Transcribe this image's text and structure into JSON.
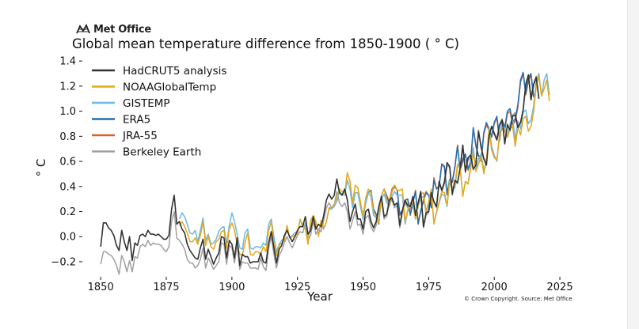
{
  "branding": {
    "logo_text": "Met Office",
    "logo_icon": "met-office-logo-icon"
  },
  "credit": "© Crown Copyright. Source: Met Office",
  "chart_data": {
    "type": "line",
    "title": "Global mean temperature difference from 1850-1900 ( ° C)",
    "xlabel": "Year",
    "ylabel": "° C",
    "xlim": [
      1843,
      2028
    ],
    "ylim": [
      -0.32,
      1.42
    ],
    "xticks": [
      1850,
      1875,
      1900,
      1925,
      1950,
      1975,
      2000,
      2025
    ],
    "yticks": [
      -0.2,
      0.0,
      0.2,
      0.4,
      0.6,
      0.8,
      1.0,
      1.2,
      1.4
    ],
    "ytick_labels": [
      "−0.2",
      "0.0",
      "0.2",
      "0.4",
      "0.6",
      "0.8",
      "1.0",
      "1.2",
      "1.4"
    ],
    "grid": false,
    "legend_position": "top-left",
    "series": [
      {
        "name": "HadCRUT5 analysis",
        "color": "#333333",
        "start": 1850,
        "values": [
          -0.08,
          0.11,
          0.11,
          0.07,
          0.05,
          0.01,
          -0.07,
          -0.11,
          0.05,
          -0.04,
          -0.11,
          0.0,
          -0.19,
          -0.05,
          -0.07,
          0.01,
          0.02,
          0.0,
          0.05,
          0.02,
          0.02,
          0.01,
          0.02,
          0.0,
          -0.02,
          -0.02,
          0.01,
          0.22,
          0.33,
          0.1,
          0.12,
          0.06,
          0.03,
          -0.06,
          -0.11,
          -0.14,
          -0.17,
          -0.18,
          -0.09,
          -0.02,
          -0.18,
          -0.1,
          -0.16,
          -0.22,
          -0.17,
          -0.13,
          0.0,
          -0.01,
          -0.17,
          -0.03,
          -0.06,
          -0.17,
          -0.01,
          -0.23,
          -0.14,
          -0.16,
          -0.16,
          -0.21,
          -0.2,
          -0.2,
          -0.2,
          -0.13,
          -0.2,
          -0.21,
          -0.05,
          0.04,
          -0.09,
          -0.21,
          -0.1,
          -0.07,
          0.01,
          0.05,
          0.0,
          -0.04,
          0.0,
          0.05,
          0.08,
          0.08,
          0.16,
          0.02,
          0.05,
          0.16,
          0.06,
          0.1,
          0.08,
          0.17,
          0.29,
          0.34,
          0.3,
          0.33,
          0.46,
          0.35,
          0.33,
          0.38,
          0.29,
          0.12,
          0.2,
          0.26,
          0.14,
          0.14,
          0.06,
          0.2,
          0.22,
          0.12,
          0.07,
          0.12,
          0.24,
          0.32,
          0.16,
          0.18,
          0.29,
          0.31,
          0.25,
          0.27,
          0.09,
          0.21,
          0.29,
          0.25,
          0.24,
          0.32,
          0.17,
          0.27,
          0.36,
          0.08,
          0.19,
          0.2,
          0.35,
          0.28,
          0.24,
          0.44,
          0.37,
          0.44,
          0.59,
          0.56,
          0.34,
          0.45,
          0.43,
          0.55,
          0.73,
          0.52,
          0.63,
          0.65,
          0.54,
          0.57,
          0.84,
          0.71,
          0.62,
          0.57,
          0.8,
          0.88,
          0.82,
          0.77,
          0.89,
          0.93,
          0.74,
          0.89,
          0.85,
          0.96,
          0.97,
          0.87,
          0.91,
          1.01,
          1.21,
          1.29,
          1.09,
          1.21,
          1.27,
          1.1
        ]
      },
      {
        "name": "NOAAGlobalTemp",
        "color": "#e6a817",
        "start": 1880,
        "values": [
          0.09,
          0.12,
          0.08,
          0.03,
          -0.04,
          -0.04,
          -0.01,
          -0.06,
          0.01,
          0.12,
          -0.07,
          0.0,
          -0.08,
          -0.1,
          -0.04,
          -0.02,
          0.04,
          0.05,
          -0.09,
          0.06,
          0.11,
          0.05,
          -0.06,
          -0.14,
          -0.15,
          -0.05,
          0.03,
          -0.14,
          -0.15,
          -0.12,
          -0.12,
          -0.14,
          -0.08,
          -0.12,
          0.05,
          0.12,
          -0.05,
          -0.15,
          -0.07,
          -0.05,
          -0.03,
          0.09,
          -0.01,
          0.0,
          0.01,
          0.02,
          0.14,
          0.08,
          0.06,
          -0.06,
          0.13,
          0.17,
          0.12,
          0.0,
          0.13,
          0.07,
          0.12,
          0.23,
          0.23,
          0.26,
          0.31,
          0.38,
          0.36,
          0.35,
          0.51,
          0.44,
          0.27,
          0.41,
          0.39,
          0.28,
          0.16,
          0.31,
          0.38,
          0.35,
          0.2,
          0.16,
          0.11,
          0.33,
          0.38,
          0.3,
          0.25,
          0.36,
          0.41,
          0.37,
          0.37,
          0.38,
          0.12,
          0.21,
          0.27,
          0.28,
          0.14,
          0.25,
          0.34,
          0.35,
          0.2,
          0.28,
          0.38,
          0.1,
          0.2,
          0.28,
          0.36,
          0.35,
          0.25,
          0.46,
          0.39,
          0.41,
          0.58,
          0.55,
          0.32,
          0.44,
          0.42,
          0.54,
          0.67,
          0.52,
          0.58,
          0.64,
          0.5,
          0.6,
          0.85,
          0.69,
          0.63,
          0.61,
          0.81,
          0.86,
          0.84,
          0.79,
          0.86,
          0.88,
          0.72,
          0.87,
          0.81,
          0.94,
          0.96,
          0.84,
          0.88,
          1.0,
          1.2,
          1.28,
          1.12,
          1.18,
          1.25,
          1.08
        ]
      },
      {
        "name": "GISTEMP",
        "color": "#6cb8e6",
        "start": 1880,
        "values": [
          0.14,
          0.19,
          0.16,
          0.1,
          0.03,
          0.02,
          0.05,
          -0.04,
          0.05,
          0.15,
          -0.03,
          0.02,
          -0.06,
          -0.05,
          -0.02,
          0.04,
          0.07,
          0.08,
          -0.06,
          0.09,
          0.19,
          0.12,
          0.02,
          -0.09,
          -0.1,
          0.03,
          0.06,
          -0.09,
          -0.1,
          -0.08,
          -0.08,
          -0.09,
          -0.05,
          -0.07,
          0.1,
          0.14,
          0.0,
          -0.12,
          -0.06,
          -0.03,
          -0.01,
          0.06,
          -0.01,
          0.01,
          0.03,
          0.04,
          0.13,
          0.1,
          0.08,
          -0.05,
          0.12,
          0.16,
          0.11,
          0.02,
          0.12,
          0.06,
          0.12,
          0.22,
          0.22,
          0.24,
          0.28,
          0.36,
          0.34,
          0.33,
          0.45,
          0.38,
          0.23,
          0.35,
          0.35,
          0.24,
          0.14,
          0.27,
          0.35,
          0.32,
          0.17,
          0.15,
          0.11,
          0.3,
          0.34,
          0.27,
          0.24,
          0.32,
          0.36,
          0.33,
          0.33,
          0.33,
          0.1,
          0.2,
          0.25,
          0.25,
          0.14,
          0.24,
          0.31,
          0.32,
          0.18,
          0.26,
          0.35,
          0.11,
          0.19,
          0.27,
          0.34,
          0.33,
          0.24,
          0.44,
          0.37,
          0.39,
          0.56,
          0.55,
          0.33,
          0.44,
          0.42,
          0.56,
          0.71,
          0.54,
          0.62,
          0.66,
          0.53,
          0.6,
          0.87,
          0.72,
          0.65,
          0.6,
          0.82,
          0.9,
          0.86,
          0.8,
          0.9,
          0.95,
          0.77,
          0.92,
          0.86,
          0.99,
          1.01,
          0.9,
          0.93,
          1.04,
          1.24,
          1.3,
          1.12,
          1.25,
          1.3,
          1.13
        ]
      },
      {
        "name": "ERA5",
        "color": "#1f6fb4",
        "start": 1950,
        "values": [
          0.18,
          0.27,
          0.35,
          0.37,
          0.22,
          0.18,
          0.1,
          0.33,
          0.38,
          0.32,
          0.26,
          0.36,
          0.4,
          0.37,
          0.18,
          0.21,
          0.29,
          0.3,
          0.18,
          0.27,
          0.36,
          0.1,
          0.21,
          0.28,
          0.35,
          0.33,
          0.23,
          0.45,
          0.38,
          0.4,
          0.58,
          0.56,
          0.34,
          0.46,
          0.44,
          0.56,
          0.72,
          0.53,
          0.62,
          0.66,
          0.54,
          0.6,
          0.87,
          0.72,
          0.65,
          0.62,
          0.83,
          0.91,
          0.86,
          0.8,
          0.91,
          0.96,
          0.78,
          0.93,
          0.87,
          1.0,
          1.02,
          0.91,
          0.94,
          1.05,
          1.25,
          1.31,
          1.14,
          1.26,
          1.3,
          1.12
        ]
      },
      {
        "name": "JRA-55",
        "color": "#d9622b",
        "start": 1958,
        "values": [
          0.38,
          0.33,
          0.28,
          0.38,
          0.41,
          0.37,
          0.17,
          0.21,
          0.29,
          0.3,
          0.17,
          0.28,
          0.37,
          0.11,
          0.2,
          0.3,
          0.36,
          0.33,
          0.24,
          0.47,
          0.38,
          0.41,
          0.58,
          0.55,
          0.33,
          0.46,
          0.43,
          0.55,
          0.73,
          0.53,
          0.6,
          0.65,
          0.53,
          0.59,
          0.86,
          0.73,
          0.64,
          0.6,
          0.82,
          0.89,
          0.85,
          0.79,
          0.9,
          0.95,
          0.76,
          0.92,
          0.85,
          0.98,
          1.0,
          0.89,
          0.92,
          1.03,
          1.23,
          1.3,
          1.13,
          1.24,
          1.29,
          1.11
        ]
      },
      {
        "name": "Berkeley Earth",
        "color": "#a0a0a0",
        "start": 1850,
        "values": [
          -0.22,
          -0.12,
          -0.12,
          -0.14,
          -0.15,
          -0.18,
          -0.23,
          -0.3,
          -0.15,
          -0.2,
          -0.28,
          -0.19,
          -0.28,
          -0.16,
          -0.17,
          -0.08,
          -0.06,
          -0.08,
          -0.03,
          -0.07,
          -0.05,
          -0.06,
          -0.06,
          -0.07,
          -0.1,
          -0.12,
          -0.08,
          0.12,
          0.2,
          -0.01,
          -0.03,
          -0.06,
          -0.1,
          -0.18,
          -0.21,
          -0.21,
          -0.25,
          -0.23,
          -0.18,
          -0.09,
          -0.25,
          -0.17,
          -0.21,
          -0.26,
          -0.23,
          -0.2,
          -0.05,
          -0.06,
          -0.22,
          -0.07,
          -0.09,
          -0.21,
          -0.06,
          -0.26,
          -0.2,
          -0.21,
          -0.21,
          -0.25,
          -0.25,
          -0.25,
          -0.26,
          -0.17,
          -0.24,
          -0.27,
          -0.09,
          0.0,
          -0.14,
          -0.25,
          -0.15,
          -0.11,
          -0.05,
          0.0,
          -0.05,
          -0.09,
          -0.04,
          0.01,
          0.04,
          0.03,
          0.11,
          -0.03,
          0.01,
          0.12,
          0.02,
          0.06,
          0.04,
          0.13,
          0.23,
          0.27,
          0.23,
          0.25,
          0.36,
          0.27,
          0.24,
          0.27,
          0.2,
          0.06,
          0.13,
          0.2,
          0.09,
          0.1,
          0.02,
          0.15,
          0.17,
          0.08,
          0.04,
          0.09,
          0.21,
          0.3,
          0.14,
          0.16,
          0.27,
          0.29,
          0.23,
          0.25,
          0.07,
          0.19,
          0.27,
          0.23,
          0.22,
          0.3,
          0.16,
          0.25,
          0.34,
          0.07,
          0.17,
          0.19,
          0.33,
          0.27,
          0.23,
          0.43,
          0.36,
          0.42,
          0.57,
          0.55,
          0.33,
          0.44,
          0.42,
          0.54,
          0.71,
          0.51,
          0.61,
          0.64,
          0.53,
          0.58,
          0.85,
          0.71,
          0.63,
          0.59,
          0.8,
          0.88,
          0.83,
          0.78,
          0.89,
          0.94,
          0.75,
          0.9,
          0.84,
          0.97,
          0.99,
          0.88,
          0.91,
          1.02,
          1.22,
          1.29,
          1.12,
          1.22,
          1.28,
          1.1
        ]
      }
    ]
  }
}
